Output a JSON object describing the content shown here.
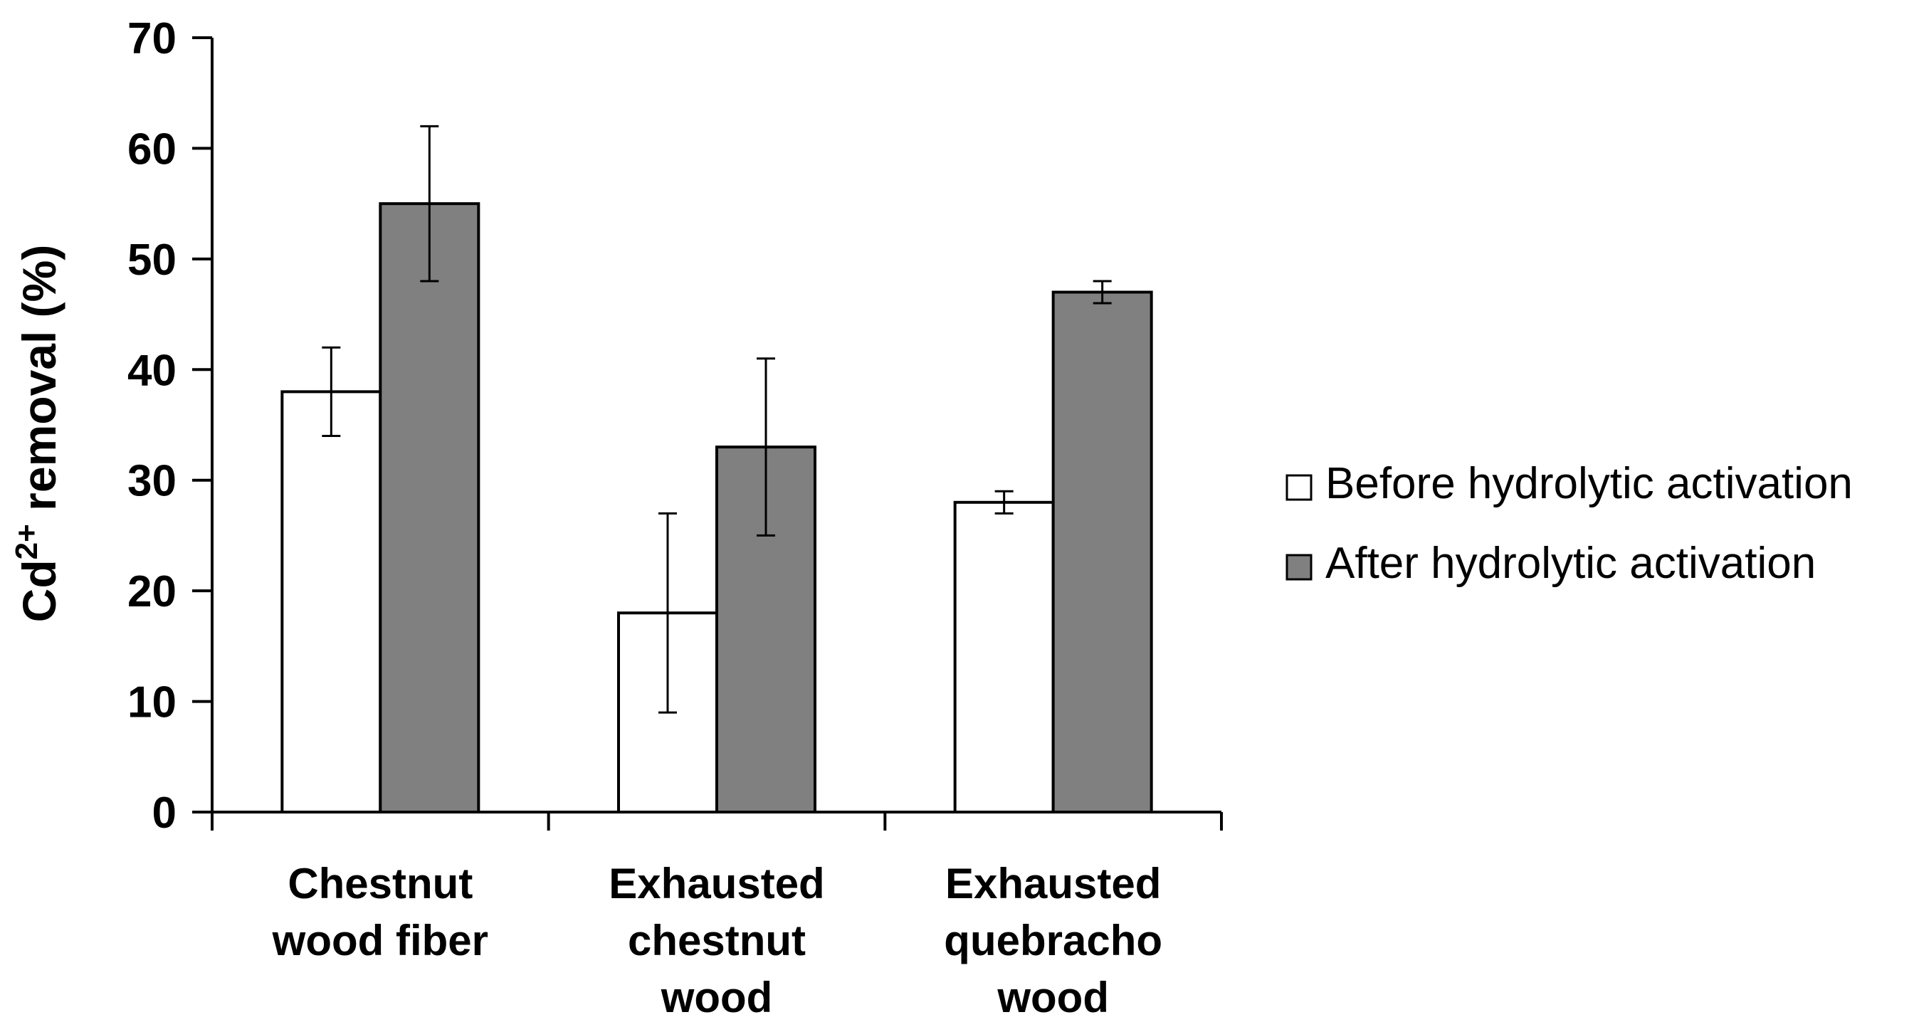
{
  "chart_data": {
    "type": "bar",
    "title": "",
    "xlabel": "",
    "ylabel": {
      "prefix": "Cd",
      "superscript": "2+",
      "suffix": " removal (%)"
    },
    "ylim": [
      0,
      70
    ],
    "yticks": [
      0,
      10,
      20,
      30,
      40,
      50,
      60,
      70
    ],
    "grid": false,
    "legend_position": "right",
    "categories": [
      [
        "Chestnut",
        "wood fiber"
      ],
      [
        "Exhausted",
        "chestnut",
        "wood"
      ],
      [
        "Exhausted",
        "quebracho",
        "wood"
      ]
    ],
    "series": [
      {
        "name": "Before hydrolytic activation",
        "color": "#ffffff",
        "values": [
          38,
          18,
          28
        ],
        "errors": [
          4,
          9,
          1
        ]
      },
      {
        "name": "After hydrolytic activation",
        "color": "#808080",
        "values": [
          55,
          33,
          47
        ],
        "errors": [
          7,
          8,
          1
        ]
      }
    ]
  }
}
